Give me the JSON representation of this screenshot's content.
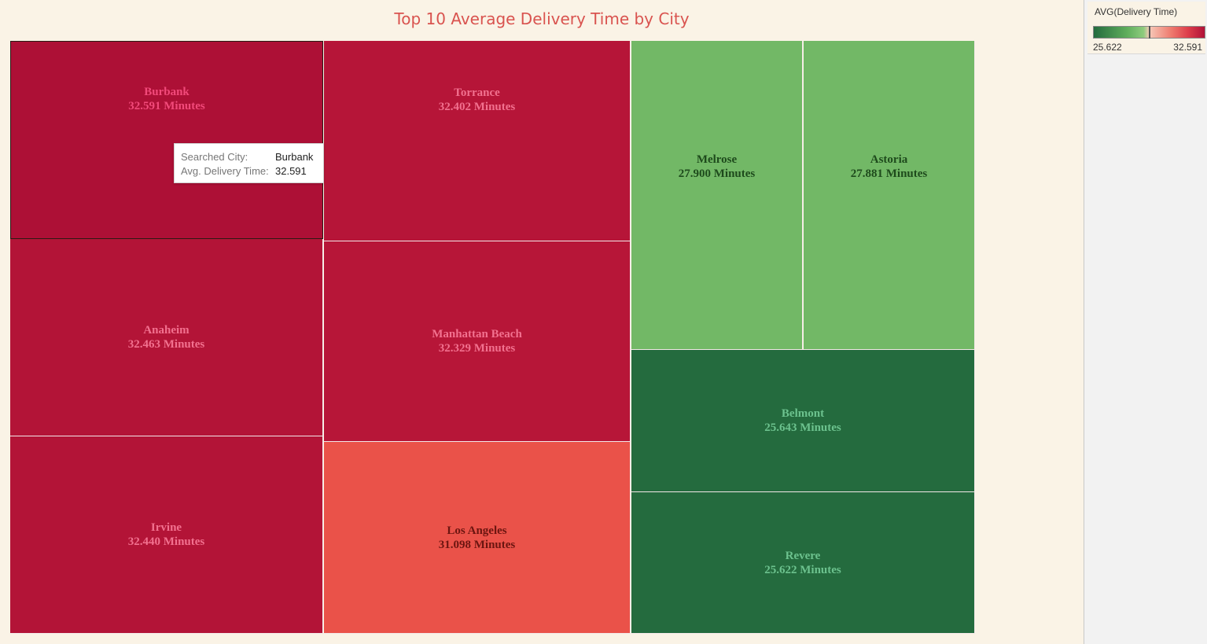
{
  "chart_data": {
    "type": "treemap",
    "title": "Top 10 Average Delivery Time by City",
    "measure": "AVG(Delivery Time)",
    "unit_suffix": "Minutes",
    "categories": [
      "Burbank",
      "Anaheim",
      "Irvine",
      "Torrance",
      "Manhattan Beach",
      "Los Angeles",
      "Melrose",
      "Astoria",
      "Belmont",
      "Revere"
    ],
    "values": [
      32.591,
      32.463,
      32.44,
      32.402,
      32.329,
      31.098,
      27.9,
      27.881,
      25.643,
      25.622
    ],
    "color_scale": {
      "min": 25.622,
      "max": 32.591,
      "low_color": "#246b3e",
      "mid_color": "#f6c9b8",
      "high_color": "#b01238"
    },
    "selected": "Burbank"
  },
  "tiles": [
    {
      "city": "Burbank",
      "label": "32.591 Minutes",
      "fill": "#ad1036",
      "text_color": "#f24a7a"
    },
    {
      "city": "Anaheim",
      "label": "32.463 Minutes",
      "fill": "#b31437",
      "text_color": "#f2718f"
    },
    {
      "city": "Irvine",
      "label": "32.440 Minutes",
      "fill": "#b31437",
      "text_color": "#f2718f"
    },
    {
      "city": "Torrance",
      "label": "32.402 Minutes",
      "fill": "#b61538",
      "text_color": "#f2718f"
    },
    {
      "city": "Manhattan Beach",
      "label": "32.329 Minutes",
      "fill": "#b71638",
      "text_color": "#f2718f"
    },
    {
      "city": "Los Angeles",
      "label": "31.098 Minutes",
      "fill": "#ea5249",
      "text_color": "#6b1510"
    },
    {
      "city": "Melrose",
      "label": "27.900 Minutes",
      "fill": "#72b866",
      "text_color": "#1e4a1c"
    },
    {
      "city": "Astoria",
      "label": "27.881 Minutes",
      "fill": "#72b866",
      "text_color": "#1e4a1c"
    },
    {
      "city": "Belmont",
      "label": "25.643 Minutes",
      "fill": "#246b3e",
      "text_color": "#6cc28e"
    },
    {
      "city": "Revere",
      "label": "25.622 Minutes",
      "fill": "#246b3e",
      "text_color": "#6cc28e"
    }
  ],
  "tooltip": {
    "city_key": "Searched City:",
    "city_value": "Burbank",
    "time_key": "Avg. Delivery Time:",
    "time_value": "32.591"
  },
  "legend": {
    "title": "AVG(Delivery Time)",
    "min_label": "25.622",
    "max_label": "32.591"
  }
}
